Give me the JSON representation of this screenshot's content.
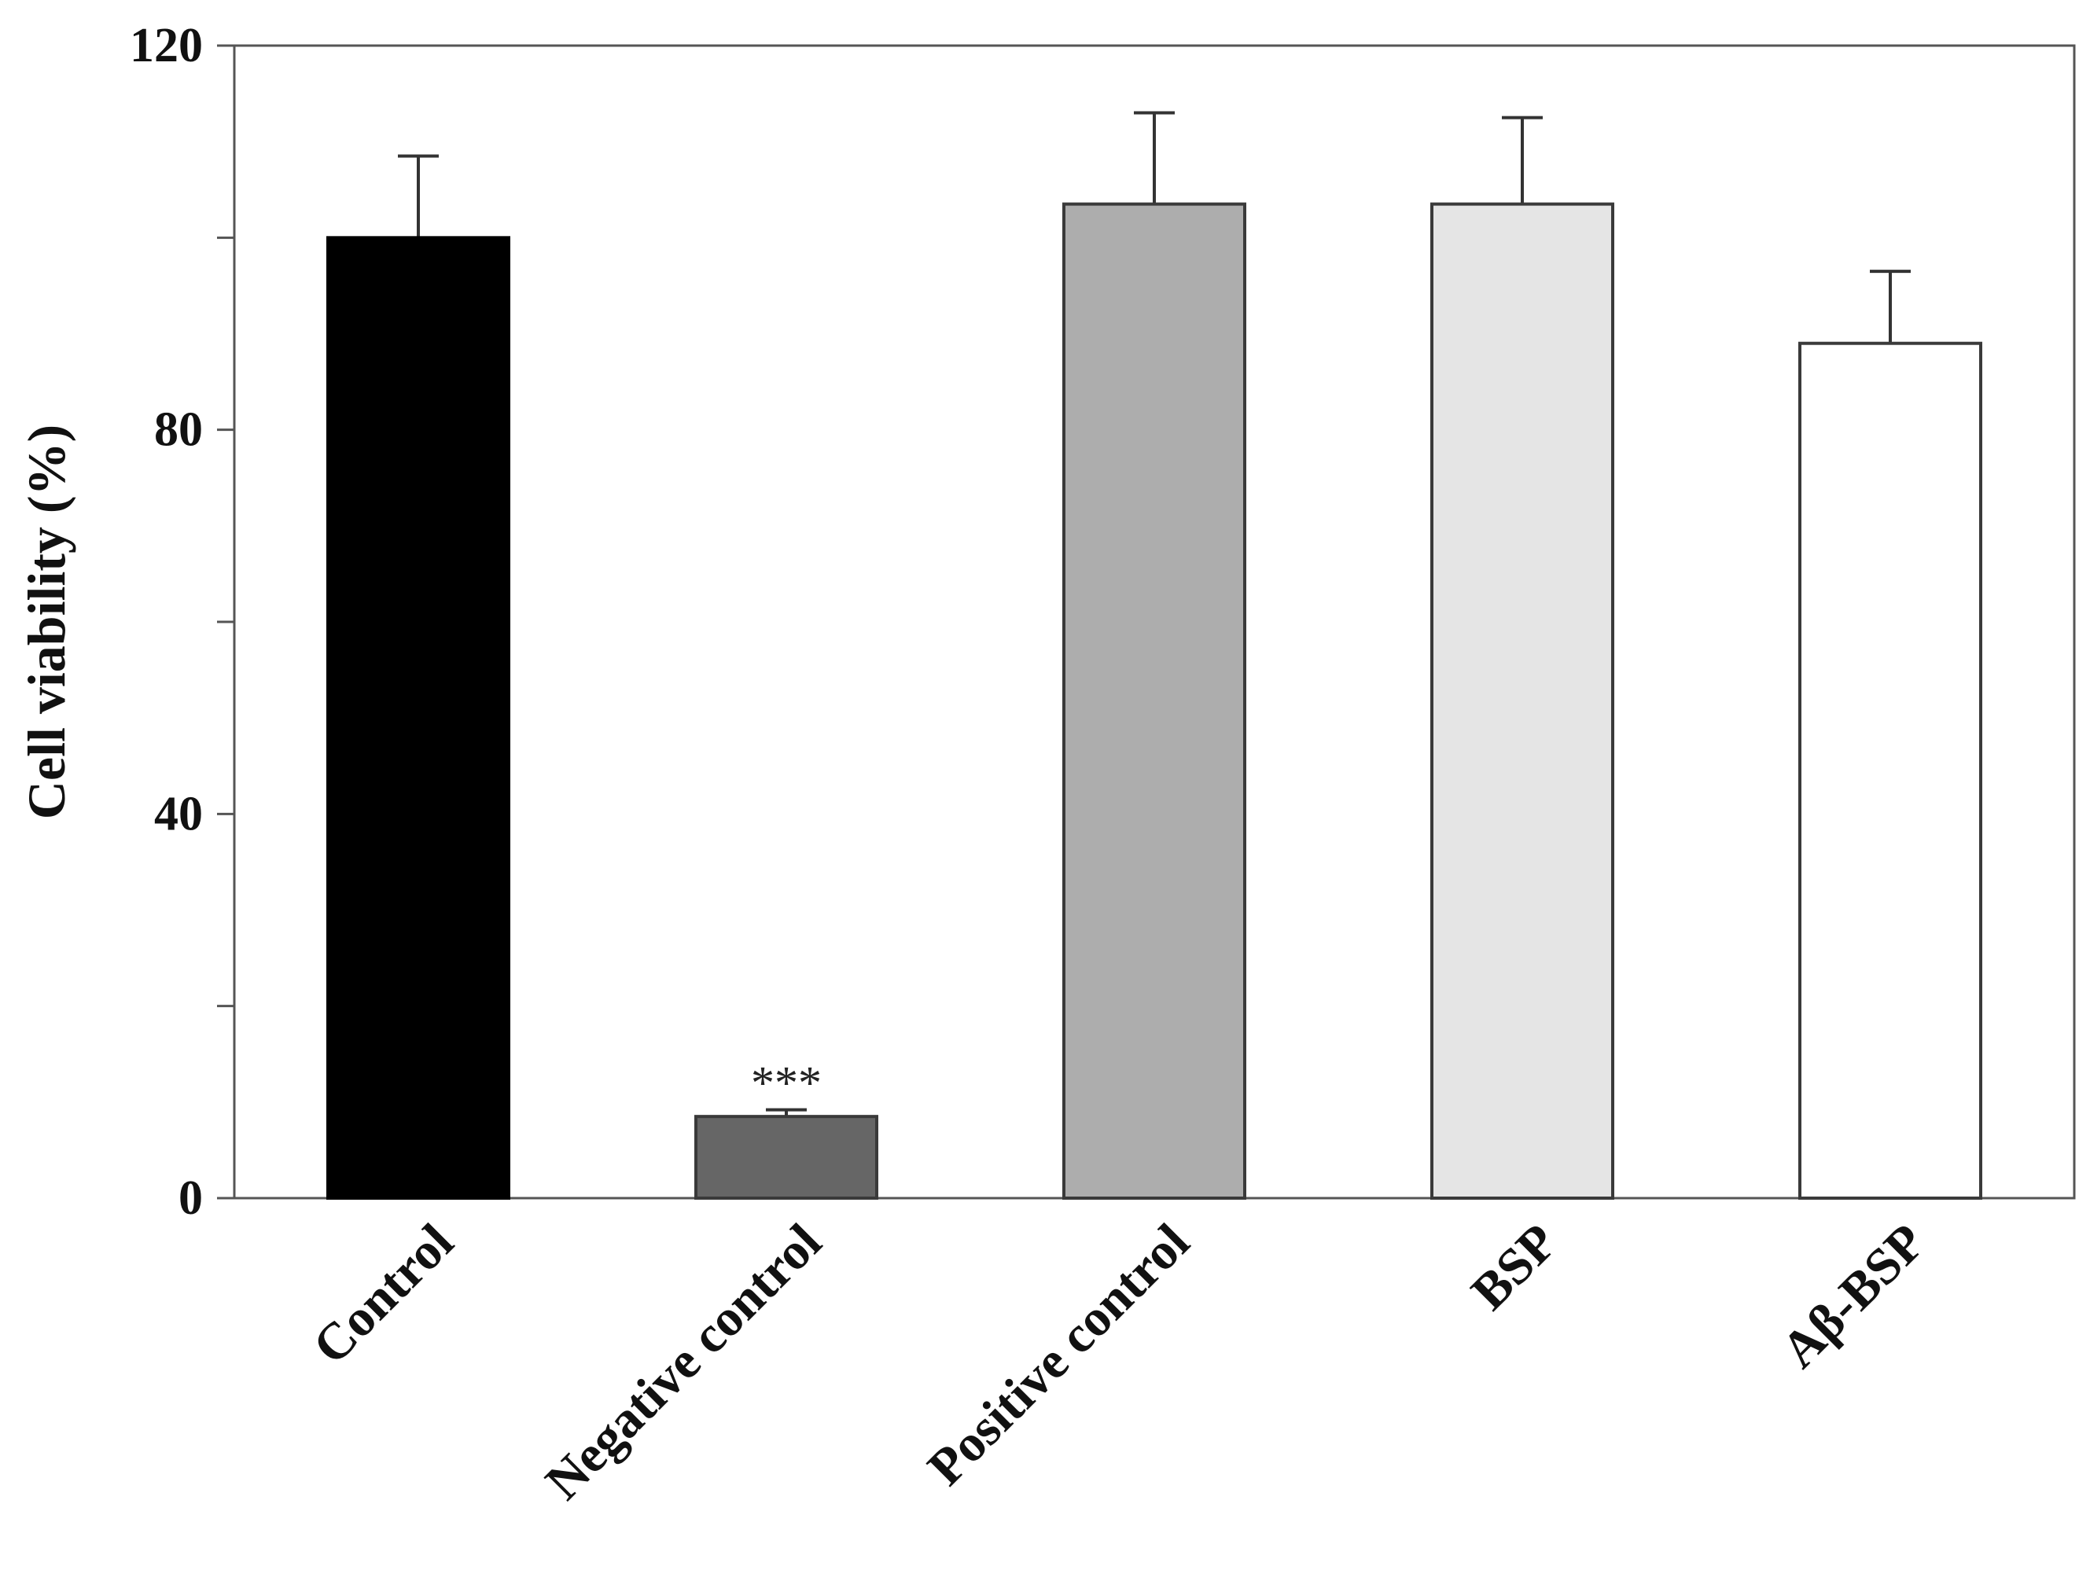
{
  "chart_data": {
    "type": "bar",
    "title": "",
    "xlabel": "",
    "ylabel": "Cell viability (%)",
    "ylim": [
      0,
      120
    ],
    "yticks": [
      0,
      20,
      40,
      60,
      80,
      100,
      120
    ],
    "ytick_labels": [
      "0",
      "",
      "40",
      "",
      "80",
      "",
      "120"
    ],
    "grid": false,
    "legend": "none",
    "categories": [
      "Control",
      "Negative control",
      "Positive control",
      "BSP",
      "Aβ-BSP"
    ],
    "values": [
      100,
      8.5,
      103.5,
      103.5,
      89
    ],
    "errors": [
      8.5,
      0.7,
      9.5,
      9,
      7.5
    ],
    "annotations": [
      "",
      "***",
      "",
      "",
      ""
    ],
    "colors": [
      "#000000",
      "#666666",
      "#adadad",
      "#e5e5e5",
      "#ffffff"
    ]
  }
}
